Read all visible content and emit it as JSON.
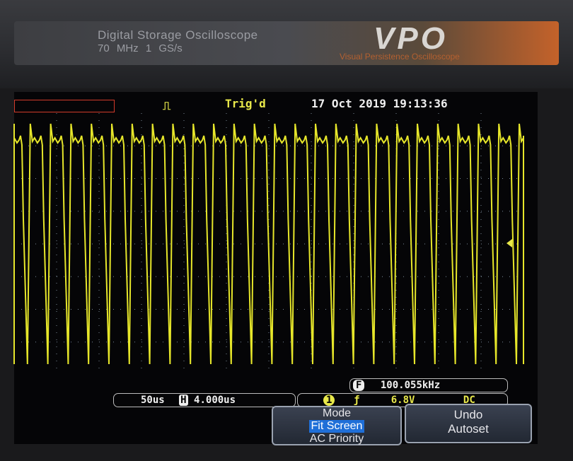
{
  "header": {
    "title": "Digital Storage Oscilloscope",
    "spec": "70 MHz  1 GS/s",
    "brand": "VPO",
    "brand_subtitle": "Visual Persistence Oscilloscope"
  },
  "status": {
    "trigger_state": "Trig'd",
    "datetime": "17 Oct 2019 19:13:36"
  },
  "bottom": {
    "timebase": "50us",
    "horizontal_icon": "H",
    "horizontal_position": "4.000us",
    "freq_icon": "F",
    "frequency": "100.055kHz",
    "channel_icon": "1",
    "trigger_level": "6.8V",
    "coupling": "DC"
  },
  "buttons": [
    {
      "lines": [
        "Mode",
        "Fit Screen",
        "AC Priority"
      ]
    },
    {
      "lines": [
        "Undo",
        "Autoset"
      ]
    }
  ]
}
